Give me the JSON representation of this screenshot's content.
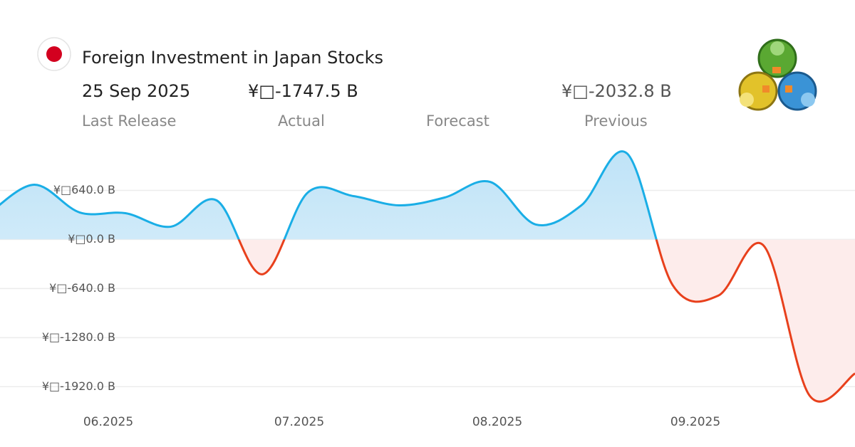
{
  "header": {
    "title": "Foreign Investment in Japan Stocks",
    "date": "25 Sep 2025",
    "actual": "¥□-1747.5 B",
    "previous": "¥□-2032.8 B",
    "labels": [
      "Last Release",
      "Actual",
      "Forecast",
      "Previous"
    ]
  },
  "chart_data": {
    "type": "line",
    "categories": [
      null,
      null,
      null,
      null,
      null,
      null,
      null,
      null,
      null,
      null,
      null,
      null,
      null,
      null,
      null,
      null,
      null,
      null,
      null,
      "25 Sep 2025"
    ],
    "values": [
      334,
      714,
      352,
      343,
      167,
      510,
      -454,
      612,
      566,
      445,
      547,
      751,
      195,
      445,
      1122,
      -594,
      -733,
      -83,
      -2032.8,
      -1747.5
    ],
    "month_labels": [
      "06.2025",
      "07.2025",
      "08.2025",
      "09.2025"
    ],
    "positive_color": "#1aaee6",
    "negative_color": "#e8401c",
    "ylim": [
      -2400,
      1220
    ],
    "yticks": [
      {
        "value": 640,
        "label": "¥□640.0 B"
      },
      {
        "value": 0,
        "label": "¥□0.0 B"
      },
      {
        "value": -640,
        "label": "¥□-640.0 B"
      },
      {
        "value": -1280,
        "label": "¥□-1280.0 B"
      },
      {
        "value": -1920,
        "label": "¥□-1920.0 B"
      }
    ],
    "grid": true
  }
}
